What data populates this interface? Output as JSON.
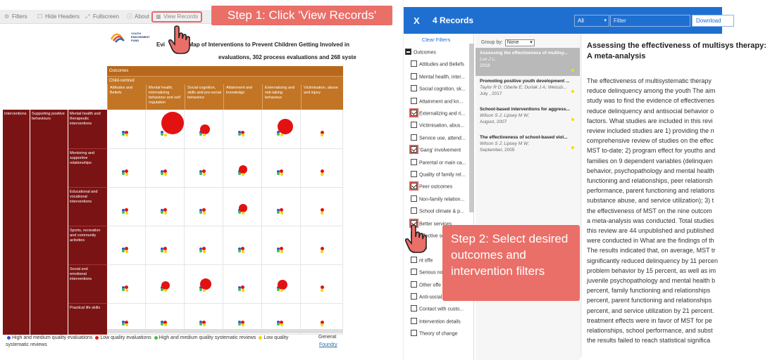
{
  "colors": {
    "accent_blue": "#1f6fd0",
    "callout": "#ea6f68",
    "outcome_header": "#c27524",
    "intervention_header": "#7a1414",
    "red": "#e31212",
    "blue": "#3a4fd8",
    "green": "#3cc43c",
    "yellow": "#f4d400"
  },
  "left": {
    "toolbar": {
      "filters": "Filters",
      "hide_headers": "Hide Headers",
      "fullscreen": "Fullscreen",
      "about": "About",
      "view_records": "View Records"
    },
    "step1": "Step 1: Click 'View Records'",
    "logo_text": "YOUTH ENDOWMENT FUND",
    "map_title_left": "Evi",
    "map_title_right": "ap Map of Interventions to Prevent Children Getting Involved in",
    "map_subtitle": "evaluations, 302 process evaluations and 268 syste",
    "outcomes": "Outcomes",
    "child_centred": "Child-centred",
    "columns": [
      "Attitudes and Beliefs",
      "Mental health, internalizing behaviour and self regulation",
      "Social cognition, skills and pro-social behaviour",
      "Attainment and knowledge",
      "Externalizing and risk-taking behaviour",
      "Victimisation, abuse and injury"
    ],
    "interventions": "Interventions",
    "supporting": "Supporting positive behaviours",
    "rows": [
      "Mental health and therapeutic interventions",
      "Mentoring and supportive relationships",
      "Educational and vocational interventions",
      "Sports, recreation and community activities",
      "Social and emotional interventions",
      "Practical life skills"
    ],
    "legend": {
      "item1": "High and medium quality evaluations",
      "item2": "Low quality evaluations",
      "item3": "High and medium quality systematic reviews",
      "item4": "Low quality",
      "item5": "systematic reviews"
    },
    "generated": "Generat",
    "foundry": "Foundry"
  },
  "right": {
    "close": "X",
    "count": "4 Records",
    "select": "All",
    "filter_placeholder": "Filter",
    "download": "Download",
    "clear_filters": "Clear Filters",
    "filters": [
      {
        "label": "Outcomes",
        "state": "minus"
      },
      {
        "label": "Attitudes and Beliefs",
        "state": "off"
      },
      {
        "label": "Mental health, inter...",
        "state": "off"
      },
      {
        "label": "Social cognition, sk...",
        "state": "off"
      },
      {
        "label": "Attainment and kn...",
        "state": "off"
      },
      {
        "label": "Externalizing and ri...",
        "state": "on"
      },
      {
        "label": "Victimisation, abus...",
        "state": "off"
      },
      {
        "label": "Service use, attend...",
        "state": "off"
      },
      {
        "label": "'Gang' involvement",
        "state": "on"
      },
      {
        "label": "Parental or main ca...",
        "state": "off"
      },
      {
        "label": "Quality of family rel...",
        "state": "off"
      },
      {
        "label": "Peer outcomes",
        "state": "on"
      },
      {
        "label": "Non-family relation...",
        "state": "off"
      },
      {
        "label": "School climate & p...",
        "state": "off"
      },
      {
        "label": "Better services",
        "state": "on"
      },
      {
        "label": "Effective se",
        "state": "off"
      },
      {
        "label": "coh",
        "state": "off"
      },
      {
        "label": "nt offe",
        "state": "off"
      },
      {
        "label": "Serious no",
        "state": "off"
      },
      {
        "label": "Other offe",
        "state": "off"
      },
      {
        "label": "Anti-social a",
        "state": "off"
      },
      {
        "label": "Contact with custo...",
        "state": "off"
      },
      {
        "label": "Intervention details",
        "state": "off"
      },
      {
        "label": "Theory of change",
        "state": "off"
      }
    ],
    "group_by_label": "Group by:",
    "group_by_value": "None",
    "records": [
      {
        "title": "Assessing the effectiveness of multisy...",
        "authors": "Lux J L;",
        "year": "2018"
      },
      {
        "title": "Promoting positive youth development ...",
        "authors": "Taylor R D; Oberle E; Durlak J A; Weissb...",
        "year": "July , 2017"
      },
      {
        "title": "School-based interventions for aggress...",
        "authors": "Wilson S J; Lipsey M W;",
        "year": "August, 2007"
      },
      {
        "title": "The effectiveness of school-based viol...",
        "authors": "Wilson S J; Lipsey M W;",
        "year": "September, 2005"
      }
    ],
    "detail_title": "Assessing the effectiveness of multisys therapy: A meta-analysis",
    "detail_lines": [
      "The effectiveness of multisystematic therapy",
      "reduce delinquency among the youth The aim",
      "study was to find the evidence of effectivenes",
      "reduce delinquency and antisocial behavior o",
      "factors. What studies are included in this revi",
      "review included studies are 1) providing the n",
      "comprehensive review of studies on the effec",
      "MST to-date; 2) program effect for youths and",
      "families on 9 dependent variables (delinquen",
      "behavior, psychopathology and mental health",
      "functioning and relationships, peer relationsh",
      "performance, parent functioning and relations",
      "substance abuse, and service utilization); 3) t",
      "the effectiveness of MST on the nine outcom",
      "a meta-analysis was conducted. Total studies",
      "this review are 44 unpublished and published",
      "were conducted in What are the findings of th",
      "The results indicated that, on average, MST tr",
      "significantly reduced delinquency by 11 percen",
      "problem behavior by 15 percent, as well as im",
      "juvenile psychopathology and mental health b",
      "percent, family functioning and relationships",
      "percent, parent functioning and relationships",
      "percent, and service utilization by 21 percent.",
      "treatment effects were in favor of MST for pe",
      "relationships, school performance, and subst",
      "the results failed to reach statistical significa"
    ],
    "step2": "Step 2: Select desired outcomes and intervention filters"
  }
}
